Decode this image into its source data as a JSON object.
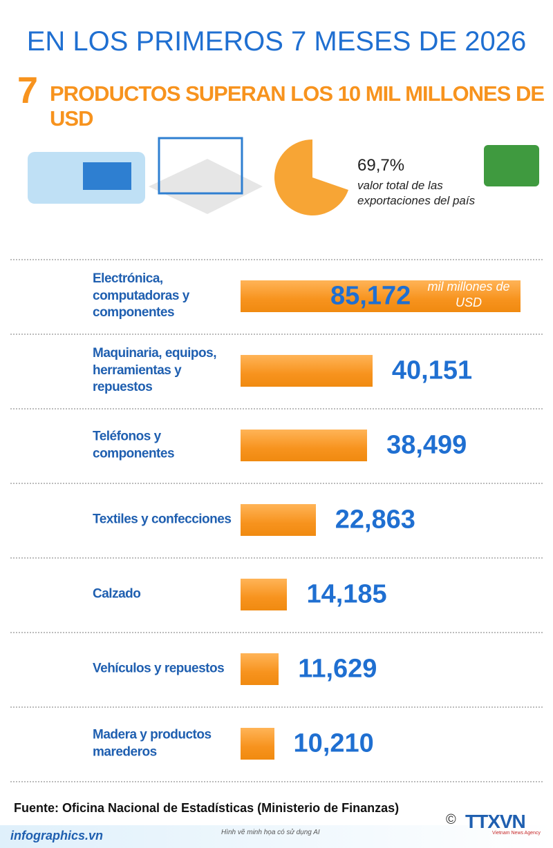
{
  "header": {
    "title": "EN LOS PRIMEROS 7 MESES DE 2026",
    "number": "7",
    "subtitle": "PRODUCTOS SUPERAN LOS 10 MIL MILLONES DE USD"
  },
  "chart_data": [
    {
      "type": "pie",
      "values": [
        69.7
      ],
      "value_labels": [
        "69,7%"
      ],
      "caption": "valor total de las exportaciones del país",
      "color": "#f7a535"
    },
    {
      "type": "bar",
      "orientation": "horizontal",
      "color": "#f7931e",
      "unit": "mil millones de USD",
      "categories": [
        "Electrónica, computadoras y componentes",
        "Maquinaria, equipos, herramientas y repuestos",
        "Teléfonos y componentes",
        "Textiles y confecciones",
        "Calzado",
        "Vehículos y repuestos",
        "Madera y productos marederos"
      ],
      "values": [
        85.172,
        40.151,
        38.499,
        22.863,
        14.185,
        11.629,
        10.21
      ],
      "value_labels": [
        "85,172",
        "40,151",
        "38,499",
        "22,863",
        "14,185",
        "11,629",
        "10,210"
      ]
    }
  ],
  "footer": {
    "source": "Fuente: Oficina Nacional de Estadísticas (Ministerio de Finanzas)",
    "site": "infographics.vn",
    "note": "Hình vẽ minh họa có sử dụng AI",
    "copyright": "©",
    "logo": "TTXVN",
    "agency": "Vietnam News Agency"
  }
}
